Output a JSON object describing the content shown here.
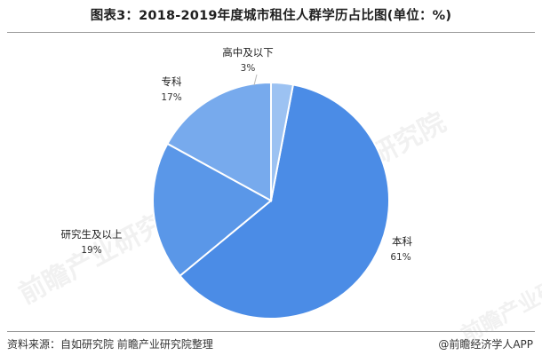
{
  "title": "图表3：2018-2019年度城市租住人群学历占比图(单位：%)",
  "footer": {
    "source": "资料来源：自如研究院 前瞻产业研究院整理",
    "brand": "@前瞻经济学人APP"
  },
  "watermark": "前瞻产业研究院",
  "chart_data": {
    "type": "pie",
    "title": "图表3：2018-2019年度城市租住人群学历占比图(单位：%)",
    "slices": [
      {
        "label": "本科",
        "value": 61,
        "pct_text": "61%",
        "color": "#4b8ce6"
      },
      {
        "label": "研究生及以上",
        "value": 19,
        "pct_text": "19%",
        "color": "#5a97e8"
      },
      {
        "label": "专科",
        "value": 17,
        "pct_text": "17%",
        "color": "#77aaed"
      },
      {
        "label": "高中及以下",
        "value": 3,
        "pct_text": "3%",
        "color": "#9cc2f2"
      }
    ]
  }
}
